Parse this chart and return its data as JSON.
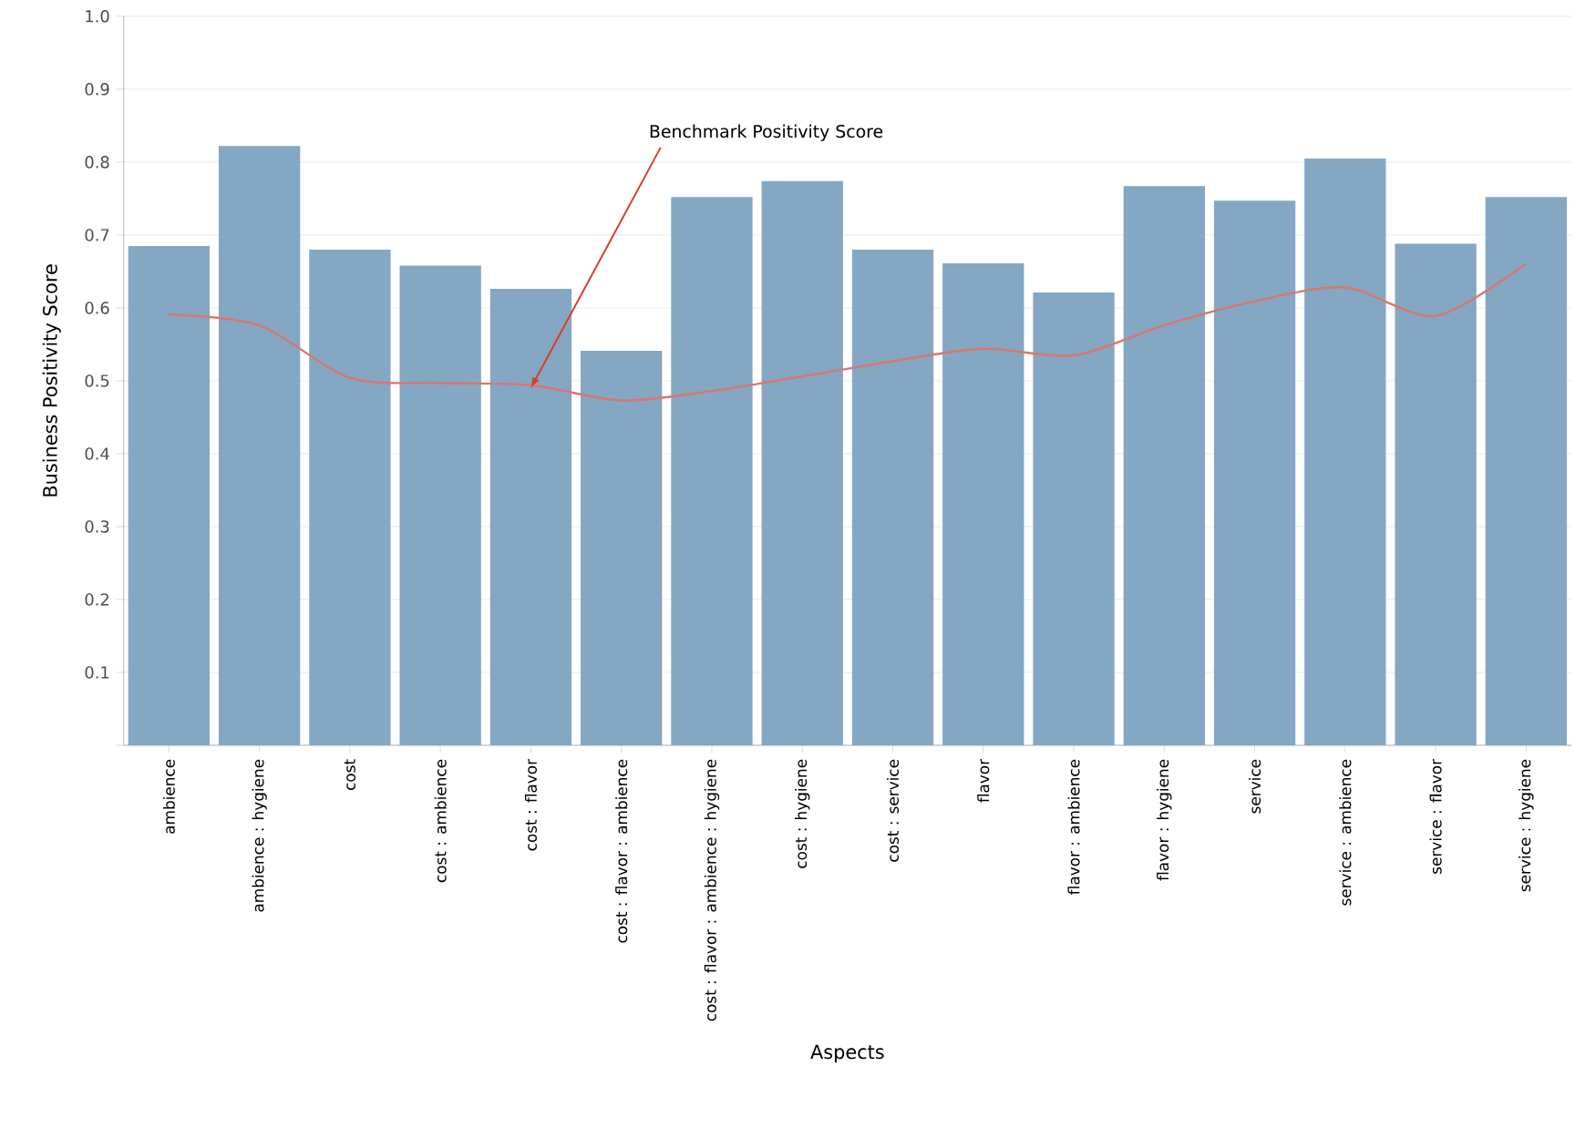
{
  "chart_data": {
    "type": "bar",
    "xlabel": "Aspects",
    "ylabel": "Business Positivity Score",
    "categories": [
      "ambience",
      "ambience : hygiene",
      "cost",
      "cost : ambience",
      "cost : flavor",
      "cost : flavor : ambience",
      "cost : flavor : ambience : hygiene",
      "cost : hygiene",
      "cost : service",
      "flavor",
      "flavor : ambience",
      "flavor : hygiene",
      "service",
      "service : ambience",
      "service : flavor",
      "service : hygiene"
    ],
    "series": [
      {
        "type": "bar",
        "color": "#84a7c4",
        "values": [
          0.685,
          0.822,
          0.68,
          0.658,
          0.626,
          0.541,
          0.752,
          0.774,
          0.68,
          0.661,
          0.621,
          0.767,
          0.747,
          0.805,
          0.688,
          0.752
        ]
      },
      {
        "type": "line",
        "color": "#d9776e",
        "values": [
          0.591,
          0.576,
          0.504,
          0.497,
          0.494,
          0.473,
          0.486,
          0.506,
          0.527,
          0.544,
          0.535,
          0.576,
          0.609,
          0.628,
          0.589,
          0.661
        ]
      }
    ],
    "ylim": [
      0,
      1.0
    ],
    "yticks": [
      {
        "value": 0,
        "label": null
      },
      0.1,
      0.2,
      0.3,
      0.4,
      0.5,
      0.6,
      0.7,
      0.8,
      0.9,
      {
        "value": 1.0,
        "label": "1.0"
      }
    ],
    "grid": "y",
    "marker": "none",
    "line_style": "solid",
    "annotations": [
      {
        "text": "Benchmark Positivity Score",
        "x": "cost : flavor",
        "y": 0.49
      }
    ]
  }
}
